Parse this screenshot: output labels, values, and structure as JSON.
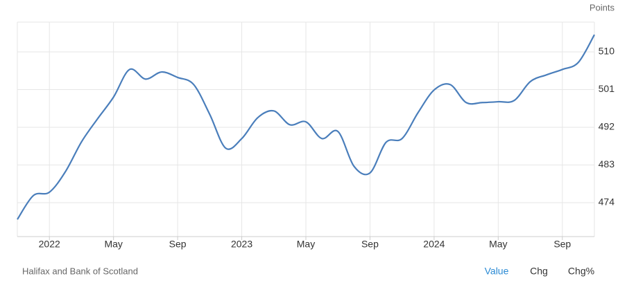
{
  "chart_data": {
    "type": "line",
    "y_axis_label": "Points",
    "x": [
      "2021-11",
      "2021-12",
      "2022-01",
      "2022-02",
      "2022-03",
      "2022-04",
      "2022-05",
      "2022-06",
      "2022-07",
      "2022-08",
      "2022-09",
      "2022-10",
      "2022-11",
      "2022-12",
      "2023-01",
      "2023-02",
      "2023-03",
      "2023-04",
      "2023-05",
      "2023-06",
      "2023-07",
      "2023-08",
      "2023-09",
      "2023-10",
      "2023-11",
      "2023-12",
      "2024-01",
      "2024-02",
      "2024-03",
      "2024-04",
      "2024-05",
      "2024-06",
      "2024-07",
      "2024-08",
      "2024-09",
      "2024-10",
      "2024-11"
    ],
    "series": [
      {
        "name": "Value",
        "color": "#4a7ebb",
        "values": [
          470.0,
          475.7,
          476.5,
          481.4,
          488.5,
          494.0,
          499.2,
          505.8,
          503.5,
          505.2,
          503.9,
          502.2,
          495.1,
          487.0,
          489.3,
          494.3,
          495.9,
          492.6,
          493.3,
          489.3,
          491.0,
          482.7,
          481.1,
          488.4,
          489.3,
          495.5,
          500.9,
          502.2,
          497.9,
          497.9,
          498.1,
          498.4,
          502.9,
          504.5,
          505.8,
          507.5,
          514.1
        ]
      }
    ],
    "xlim": [
      "2021-11",
      "2024-11"
    ],
    "xticks": [
      {
        "value": "2022-01",
        "label": "2022"
      },
      {
        "value": "2022-05",
        "label": "May"
      },
      {
        "value": "2022-09",
        "label": "Sep"
      },
      {
        "value": "2023-01",
        "label": "2023"
      },
      {
        "value": "2023-05",
        "label": "May"
      },
      {
        "value": "2023-09",
        "label": "Sep"
      },
      {
        "value": "2024-01",
        "label": "2024"
      },
      {
        "value": "2024-05",
        "label": "May"
      },
      {
        "value": "2024-09",
        "label": "Sep"
      }
    ],
    "ylim": [
      465.9,
      517.1
    ],
    "yticks": [
      474,
      483,
      492,
      501,
      510
    ],
    "grid": true
  },
  "source": "Halifax and Bank of Scotland",
  "buttons": [
    "Value",
    "Chg",
    "Chg%"
  ]
}
